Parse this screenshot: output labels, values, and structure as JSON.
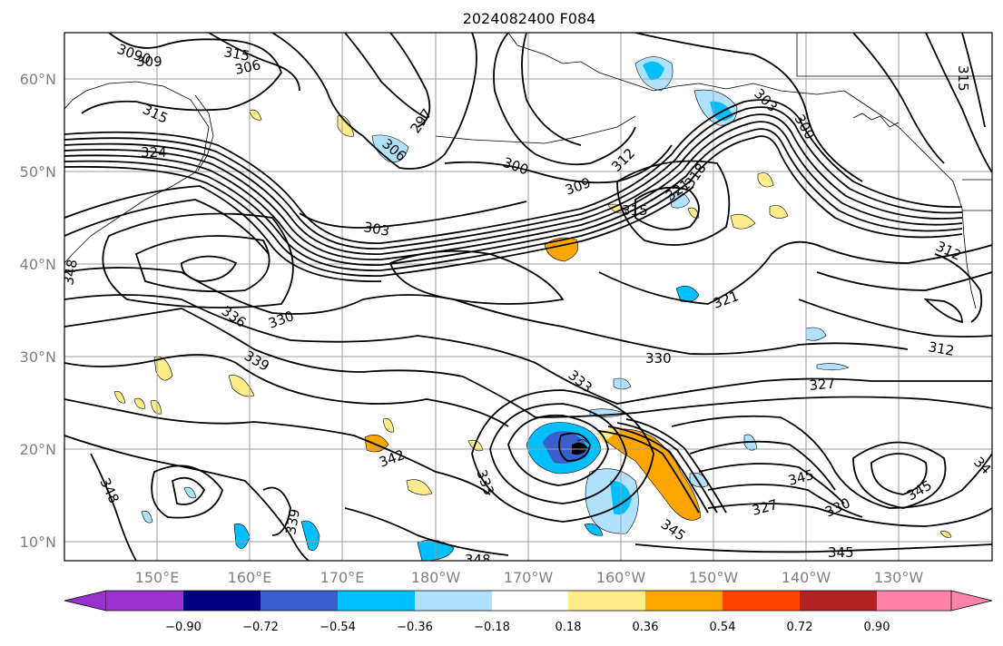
{
  "title": "2024082400 F084",
  "map": {
    "lat_labels": [
      "60°N",
      "50°N",
      "40°N",
      "30°N",
      "20°N",
      "10°N"
    ],
    "lon_labels": [
      "150°E",
      "160°E",
      "170°E",
      "180°W",
      "170°W",
      "160°W",
      "150°W",
      "140°W",
      "130°W"
    ],
    "contour_labels": [
      {
        "text": "3090"
      },
      {
        "text": "309"
      },
      {
        "text": "315"
      },
      {
        "text": "306"
      },
      {
        "text": "315"
      },
      {
        "text": "324"
      },
      {
        "text": "297"
      },
      {
        "text": "306"
      },
      {
        "text": "300"
      },
      {
        "text": "303"
      },
      {
        "text": "309"
      },
      {
        "text": "312"
      },
      {
        "text": "315"
      },
      {
        "text": "321"
      },
      {
        "text": "318"
      },
      {
        "text": "303"
      },
      {
        "text": "300"
      },
      {
        "text": "315"
      },
      {
        "text": "312"
      },
      {
        "text": "321"
      },
      {
        "text": "312"
      },
      {
        "text": "348"
      },
      {
        "text": "336"
      },
      {
        "text": "330"
      },
      {
        "text": "339"
      },
      {
        "text": "330"
      },
      {
        "text": "333"
      },
      {
        "text": "327"
      },
      {
        "text": "342"
      },
      {
        "text": "333"
      },
      {
        "text": "348"
      },
      {
        "text": "339"
      },
      {
        "text": "348"
      },
      {
        "text": "345"
      },
      {
        "text": "345"
      },
      {
        "text": "327"
      },
      {
        "text": "330"
      },
      {
        "text": "345"
      },
      {
        "text": "345"
      },
      {
        "text": "34"
      }
    ]
  },
  "colorbar": {
    "labels": [
      "−0.90",
      "−0.72",
      "−0.54",
      "−0.36",
      "−0.18",
      "0.18",
      "0.36",
      "0.54",
      "0.72",
      "0.90"
    ],
    "colors": [
      "#9932cc",
      "#000080",
      "#3a5fcd",
      "#00bfff",
      "#b0e2ff",
      "#ffffff",
      "#ffec8b",
      "#ffa500",
      "#ff4500",
      "#b22222",
      "#ff82ab"
    ]
  }
}
